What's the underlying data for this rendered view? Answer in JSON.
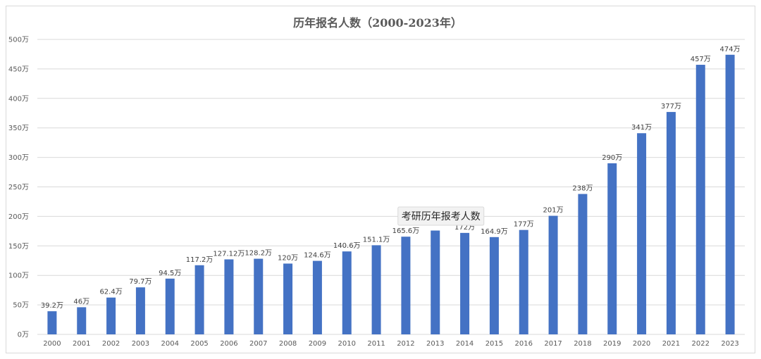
{
  "chart_data": {
    "type": "bar",
    "title": "历年报名人数（2000-2023年）",
    "categories": [
      "2000",
      "2001",
      "2002",
      "2003",
      "2004",
      "2005",
      "2006",
      "2007",
      "2008",
      "2009",
      "2010",
      "2011",
      "2012",
      "2013",
      "2014",
      "2015",
      "2016",
      "2017",
      "2018",
      "2019",
      "2020",
      "2021",
      "2022",
      "2023"
    ],
    "values": [
      39.2,
      46,
      62.4,
      79.7,
      94.5,
      117.2,
      127.12,
      128.2,
      120,
      124.6,
      140.6,
      151.1,
      165.6,
      176,
      172,
      164.9,
      177,
      201,
      238,
      290,
      341,
      377,
      457,
      474
    ],
    "data_labels": [
      "39.2万",
      "46万",
      "62.4万",
      "79.7万",
      "94.5万",
      "117.2万",
      "127.12万",
      "128.2万",
      "120万",
      "124.6万",
      "140.6万",
      "151.1万",
      "165.6万",
      "",
      "172万",
      "164.9万",
      "177万",
      "201万",
      "238万",
      "290万",
      "341万",
      "377万",
      "457万",
      "474万"
    ],
    "y_tick_labels": [
      "0万",
      "50万",
      "100万",
      "150万",
      "200万",
      "250万",
      "300万",
      "350万",
      "400万",
      "450万",
      "500万"
    ],
    "ylim": [
      0,
      500
    ],
    "y_step": 50,
    "grid": true,
    "legend": "none",
    "bar_color": "#4472c4",
    "grid_color": "#d9d9d9",
    "tooltip": "考研历年报考人数"
  }
}
